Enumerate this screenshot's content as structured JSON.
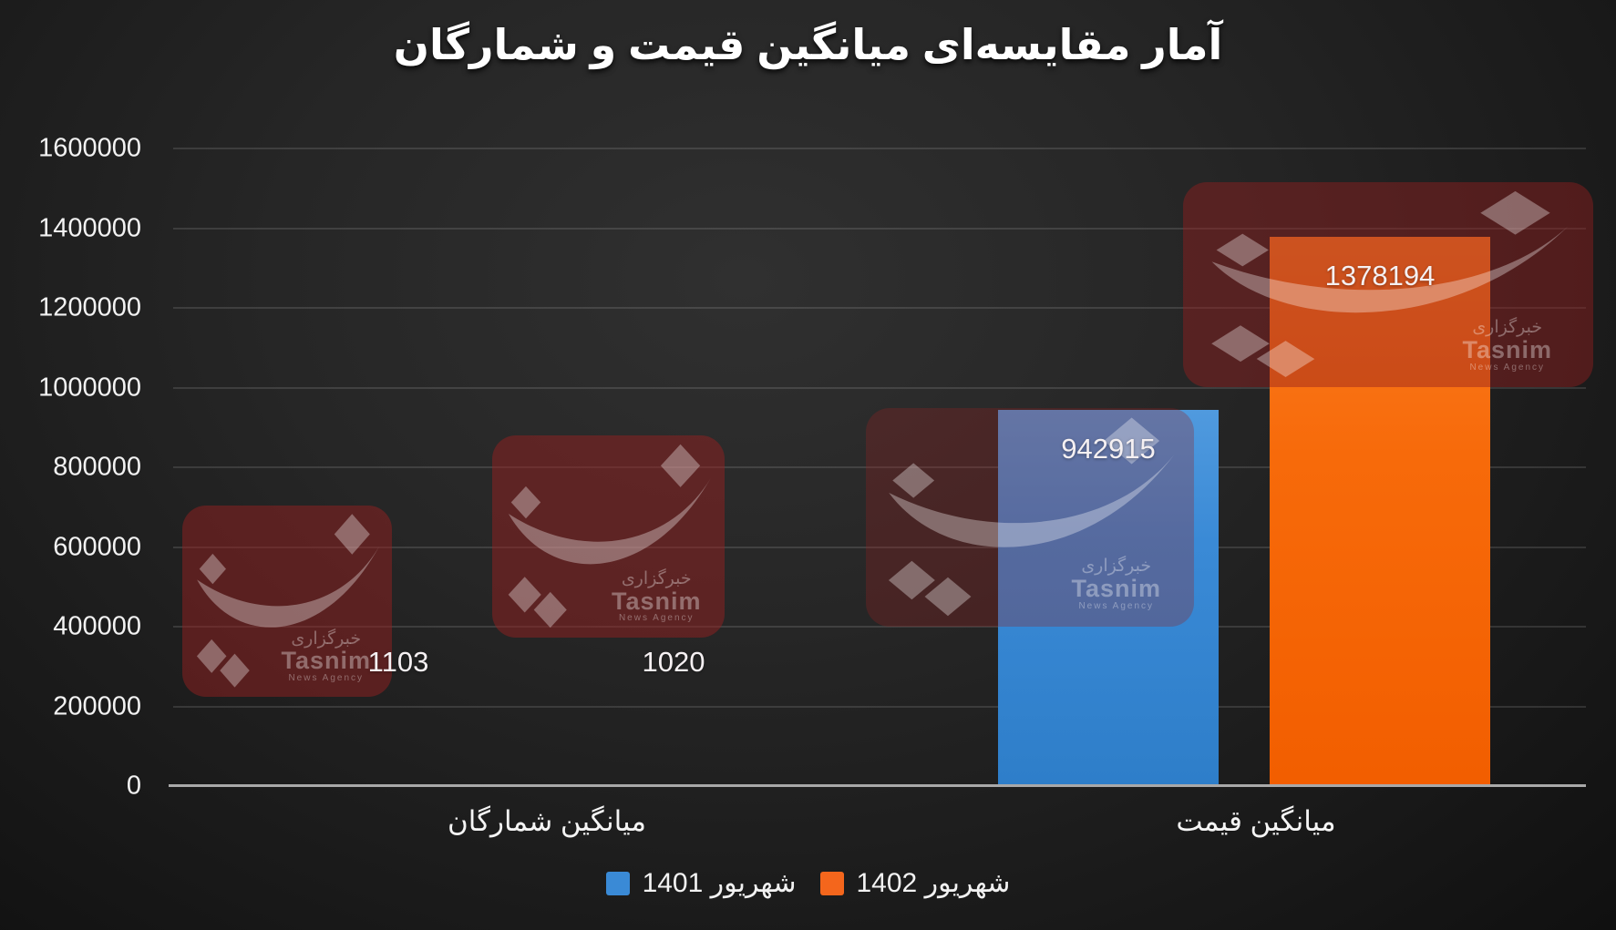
{
  "title": "آمار مقایسه‌ای میانگین قیمت و شمارگان",
  "chart_data": {
    "type": "bar",
    "categories": [
      "میانگین شمارگان",
      "میانگین قیمت"
    ],
    "series": [
      {
        "name": "شهریور 1401",
        "color": "#3a8ad6",
        "values": [
          1103,
          942915
        ]
      },
      {
        "name": "شهریور 1402",
        "color": "#f4661c",
        "values": [
          1020,
          1378194
        ]
      }
    ],
    "data_labels": [
      [
        "1103",
        "942915"
      ],
      [
        "1020",
        "1378194"
      ]
    ],
    "ylim": [
      0,
      1600000
    ],
    "ytick_step": 200000,
    "yticks": [
      "0",
      "200000",
      "400000",
      "600000",
      "800000",
      "1000000",
      "1200000",
      "1400000",
      "1600000"
    ],
    "grid": true,
    "legend_position": "bottom",
    "xlabel": "",
    "ylabel": ""
  },
  "watermark": {
    "brand_fa": "خبرگزاری",
    "brand_en": "Tasnim",
    "brand_sub": "News Agency"
  },
  "colors": {
    "series_1401": "#3a8ad6",
    "series_1402": "#f4661c",
    "background": "#262626",
    "text": "#ffffff",
    "gridline": "rgba(255,255,255,0.12)",
    "axis_line": "#a9a9a9"
  }
}
